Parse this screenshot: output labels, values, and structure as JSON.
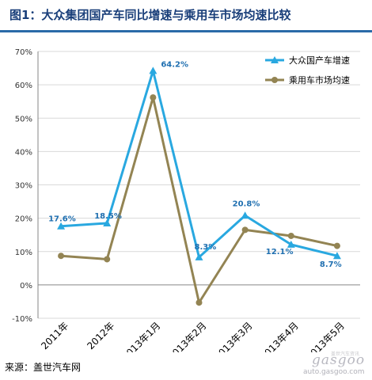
{
  "title": "图1：大众集团国产车同比增速与乘用车市场均速比较",
  "source": "来源：盖世汽车网",
  "watermark": {
    "logo": "gasgoo",
    "url": "auto.gasgoo.com",
    "cn": "盖世汽车资讯"
  },
  "colors": {
    "series1": "#29a8e0",
    "series2": "#938453",
    "label": "#1f6fb0",
    "title": "#1a3f7a",
    "grid": "#d9d9d9",
    "axis": "#868686"
  },
  "chart_data": {
    "type": "line",
    "categories": [
      "2011年",
      "2012年",
      "2013年1月",
      "2013年2月",
      "2013年3月",
      "2013年4月",
      "2013年5月"
    ],
    "series": [
      {
        "name": "大众国产车增速",
        "marker": "triangle",
        "values": [
          17.6,
          18.5,
          64.2,
          8.3,
          20.8,
          12.1,
          8.7
        ]
      },
      {
        "name": "乘用车市场均速",
        "marker": "circle",
        "values": [
          8.7,
          7.7,
          56.2,
          -5.3,
          16.5,
          14.7,
          11.7
        ]
      }
    ],
    "data_labels": [
      "17.6%",
      "18.5%",
      "64.2%",
      "8.3%",
      "20.8%",
      "12.1%",
      "8.7%"
    ],
    "ylim": [
      -10,
      70
    ],
    "yticks": [
      "-10%",
      "0%",
      "10%",
      "20%",
      "30%",
      "40%",
      "50%",
      "60%",
      "70%"
    ],
    "ytick_values": [
      -10,
      0,
      10,
      20,
      30,
      40,
      50,
      60,
      70
    ],
    "grid": true,
    "legend_position": "top-right",
    "xlabel": "",
    "ylabel": ""
  }
}
